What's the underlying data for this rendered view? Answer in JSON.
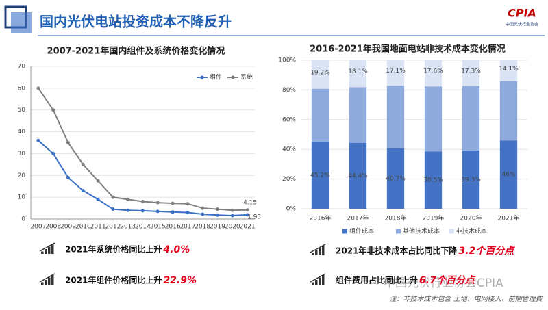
{
  "header": {
    "title": "国内光伏电站投资成本不降反升",
    "logo": "CPIA",
    "logo_sub": "中国光伏行业协会"
  },
  "chart_data": [
    {
      "type": "line",
      "title": "2007-2021年国内组件及系统价格变化情况",
      "categories": [
        "2007",
        "2008",
        "2009",
        "2010",
        "2011",
        "2012",
        "2013",
        "2014",
        "2015",
        "2016",
        "2017",
        "2018",
        "2019",
        "2020",
        "2021"
      ],
      "series": [
        {
          "name": "组件",
          "color": "#3a6fc4",
          "values": [
            36,
            30,
            19,
            13,
            9,
            4.5,
            4,
            3.8,
            3.5,
            3.2,
            3,
            2.2,
            1.8,
            1.57,
            1.93
          ]
        },
        {
          "name": "系统",
          "color": "#7f7f7f",
          "values": [
            60,
            50,
            35,
            25,
            17.5,
            10,
            9,
            8,
            7.5,
            7.2,
            7,
            5,
            4.5,
            3.99,
            4.15
          ]
        }
      ],
      "data_labels": "last",
      "ylim": [
        0,
        70
      ],
      "yticks": [
        0,
        10,
        20,
        30,
        40,
        50,
        60,
        70
      ],
      "grid": true,
      "legend": "upper right"
    },
    {
      "type": "bar",
      "stacked": true,
      "title": "2016-2021年我国地面电站非技术成本变化情况",
      "categories": [
        "2016年",
        "2017年",
        "2018年",
        "2019年",
        "2020年",
        "2021年"
      ],
      "series": [
        {
          "name": "组件成本",
          "color": "#4472c4",
          "values": [
            45.2,
            44.4,
            40.7,
            38.5,
            39.3,
            46
          ],
          "value_labels": [
            "45.2%",
            "44.4%",
            "40.7%",
            "38.5%",
            "39.3%",
            "46%"
          ]
        },
        {
          "name": "其他技术成本",
          "color": "#8faadc",
          "values": [
            35.6,
            37.5,
            42.2,
            43.9,
            43.4,
            39.9
          ]
        },
        {
          "name": "非技术成本",
          "color": "#dae3f3",
          "values": [
            19.2,
            18.1,
            17.1,
            17.6,
            17.3,
            14.1
          ],
          "value_labels": [
            "19.2%",
            "18.1%",
            "17.1%",
            "17.6%",
            "17.3%",
            "14.1%"
          ]
        }
      ],
      "ylim": [
        0,
        100
      ],
      "yticks": [
        {
          "value": 0,
          "label": "0%"
        },
        {
          "value": 20,
          "label": "20%"
        },
        {
          "value": 40,
          "label": "40%"
        },
        {
          "value": 60,
          "label": "60%"
        },
        {
          "value": 80,
          "label": "80%"
        },
        {
          "value": 100,
          "label": "100%"
        }
      ],
      "grid": true,
      "legend": "bottom"
    }
  ],
  "stats": [
    {
      "text": "2021年系统价格同比上升",
      "highlight": "4.0%"
    },
    {
      "text": "2021年组件价格同比上升",
      "highlight": "22.9%"
    },
    {
      "text": "2021年非技术成本占比同比下降",
      "highlight": "3.2个百分点"
    },
    {
      "text": "组件费用占比同比上升",
      "highlight": "6.7个百分点"
    }
  ],
  "watermark": "中国光伏行业协会CPIA",
  "footnote": "注：非技术成本包含 土地、电网接入、前期管理费"
}
